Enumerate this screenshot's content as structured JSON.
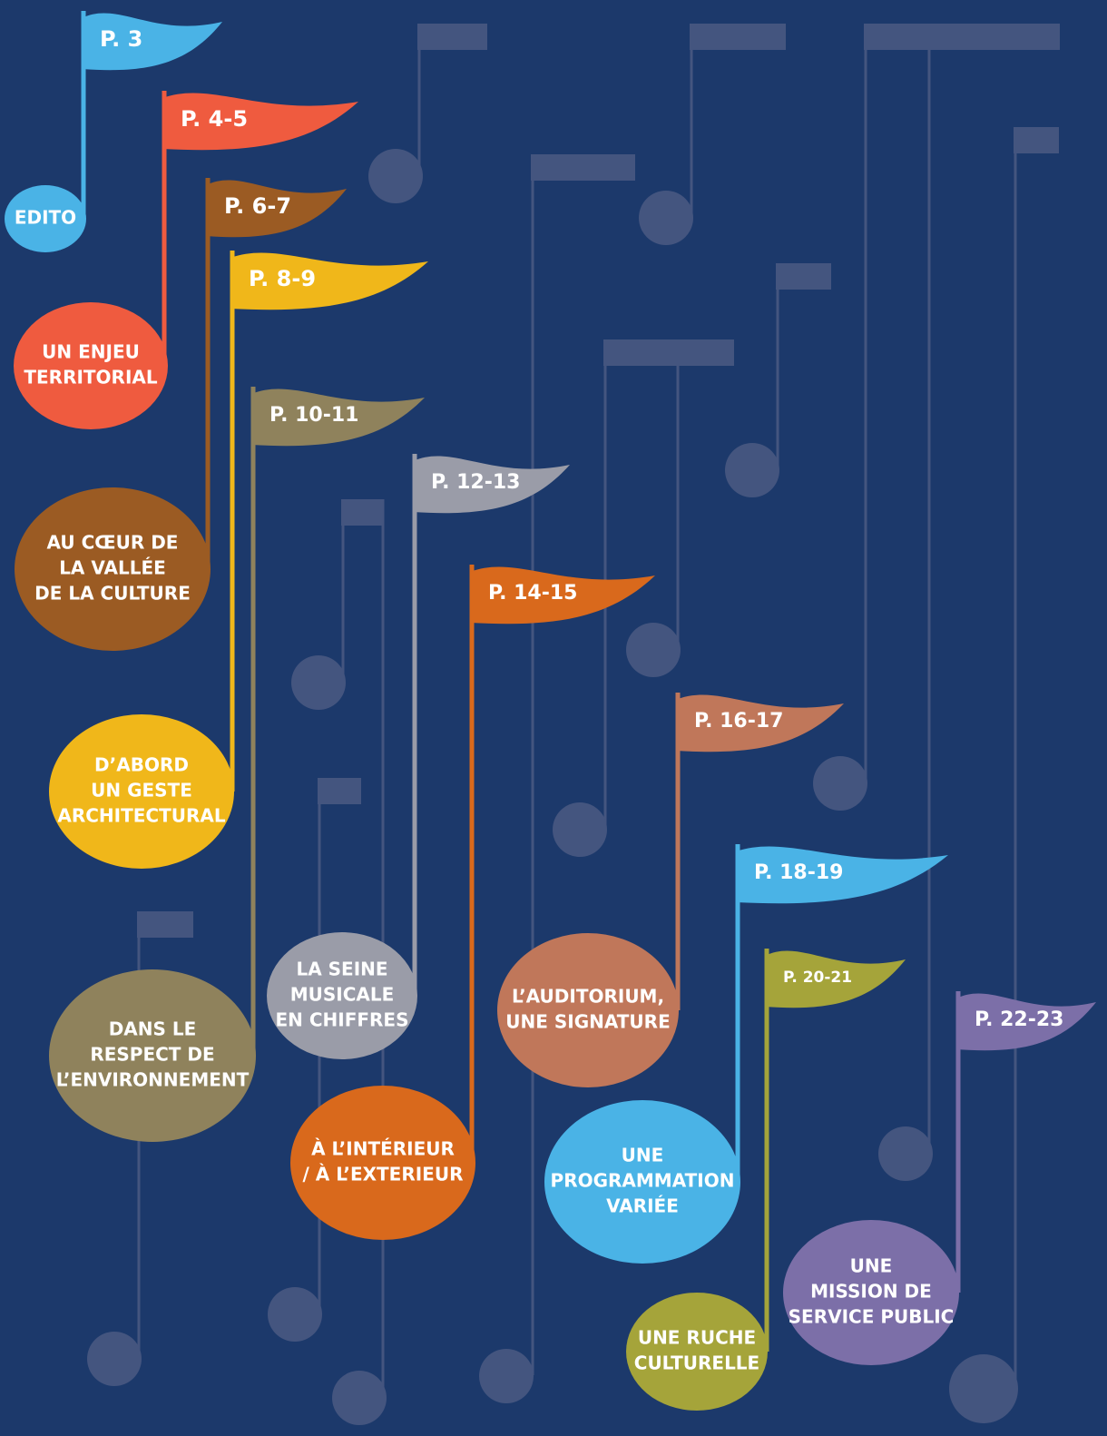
{
  "items": [
    {
      "page": "P. 3",
      "title": [
        "EDITO"
      ]
    },
    {
      "page": "P. 4-5",
      "title": [
        "UN ENJEU",
        "TERRITORIAL"
      ]
    },
    {
      "page": "P. 6-7",
      "title": [
        "AU CŒUR DE",
        "LA VALLÉE",
        "DE LA CULTURE"
      ]
    },
    {
      "page": "P. 8-9",
      "title": [
        "D’ABORD",
        "UN GESTE",
        "ARCHITECTURAL"
      ]
    },
    {
      "page": "P. 10-11",
      "title": [
        "DANS LE",
        "RESPECT DE",
        "L’ENVIRONNEMENT"
      ]
    },
    {
      "page": "P. 12-13",
      "title": [
        "LA SEINE",
        "MUSICALE",
        "EN CHIFFRES"
      ]
    },
    {
      "page": "P. 14-15",
      "title": [
        "À L’INTÉRIEUR",
        "/ À L’EXTERIEUR"
      ]
    },
    {
      "page": "P. 16-17",
      "title": [
        "L’AUDITORIUM,",
        "UNE SIGNATURE"
      ]
    },
    {
      "page": "P. 18-19",
      "title": [
        "UNE",
        "PROGRAMMATION",
        "VARIÉE"
      ]
    },
    {
      "page": "P. 20-21",
      "title": [
        "UNE RUCHE",
        "CULTURELLE"
      ]
    },
    {
      "page": "P. 22-23",
      "title": [
        "UNE",
        "MISSION DE",
        "SERVICE PUBLIC"
      ]
    }
  ]
}
